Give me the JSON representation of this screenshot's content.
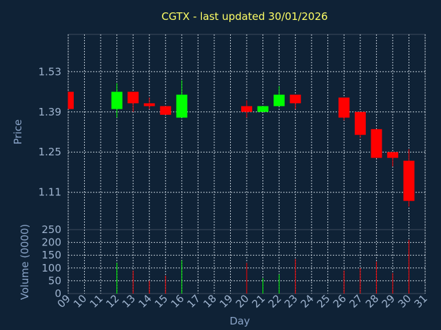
{
  "chart_data": {
    "type": "candlestick",
    "title": "CGTX - last updated 30/01/2026",
    "xlabel": "Day",
    "ylabel": "Price",
    "volume_label": "Volume (0000)",
    "x_ticks": [
      "09",
      "10",
      "11",
      "12",
      "13",
      "14",
      "15",
      "16",
      "17",
      "18",
      "19",
      "20",
      "21",
      "22",
      "23",
      "24",
      "25",
      "26",
      "27",
      "28",
      "29",
      "30",
      "31"
    ],
    "price_ticks": [
      "1.53",
      "1.39",
      "1.25",
      "1.11"
    ],
    "price_tick_values": [
      1.53,
      1.39,
      1.25,
      1.11
    ],
    "volume_ticks": [
      "250",
      "200",
      "150",
      "100",
      "50",
      "0"
    ],
    "volume_tick_values": [
      250,
      200,
      150,
      100,
      50,
      0
    ],
    "price_range": [
      0.98,
      1.66
    ],
    "volume_range": [
      0,
      250
    ],
    "grid": true,
    "colors": {
      "up": "#00ff00",
      "down": "#ff0000",
      "background": "#0f2236",
      "title": "#ffff66",
      "axis": "#9fb4cf"
    },
    "candles": [
      {
        "day": 9,
        "open": 1.46,
        "high": 1.46,
        "low": 1.4,
        "close": 1.4,
        "volume": 0
      },
      {
        "day": 12,
        "open": 1.4,
        "high": 1.49,
        "low": 1.37,
        "close": 1.46,
        "volume": 120
      },
      {
        "day": 13,
        "open": 1.46,
        "high": 1.46,
        "low": 1.39,
        "close": 1.42,
        "volume": 90
      },
      {
        "day": 14,
        "open": 1.42,
        "high": 1.44,
        "low": 1.4,
        "close": 1.41,
        "volume": 50
      },
      {
        "day": 15,
        "open": 1.41,
        "high": 1.41,
        "low": 1.38,
        "close": 1.38,
        "volume": 70
      },
      {
        "day": 16,
        "open": 1.37,
        "high": 1.5,
        "low": 1.37,
        "close": 1.45,
        "volume": 130
      },
      {
        "day": 20,
        "open": 1.41,
        "high": 1.43,
        "low": 1.37,
        "close": 1.39,
        "volume": 120
      },
      {
        "day": 21,
        "open": 1.39,
        "high": 1.41,
        "low": 1.39,
        "close": 1.41,
        "volume": 60
      },
      {
        "day": 22,
        "open": 1.41,
        "high": 1.48,
        "low": 1.41,
        "close": 1.45,
        "volume": 75
      },
      {
        "day": 23,
        "open": 1.45,
        "high": 1.45,
        "low": 1.4,
        "close": 1.42,
        "volume": 135
      },
      {
        "day": 26,
        "open": 1.44,
        "high": 1.44,
        "low": 1.36,
        "close": 1.37,
        "volume": 90
      },
      {
        "day": 27,
        "open": 1.39,
        "high": 1.39,
        "low": 1.3,
        "close": 1.31,
        "volume": 100
      },
      {
        "day": 28,
        "open": 1.33,
        "high": 1.33,
        "low": 1.23,
        "close": 1.23,
        "volume": 125
      },
      {
        "day": 29,
        "open": 1.25,
        "high": 1.25,
        "low": 1.2,
        "close": 1.23,
        "volume": 80
      },
      {
        "day": 30,
        "open": 1.22,
        "high": 1.26,
        "low": 1.06,
        "close": 1.08,
        "volume": 210
      }
    ]
  }
}
